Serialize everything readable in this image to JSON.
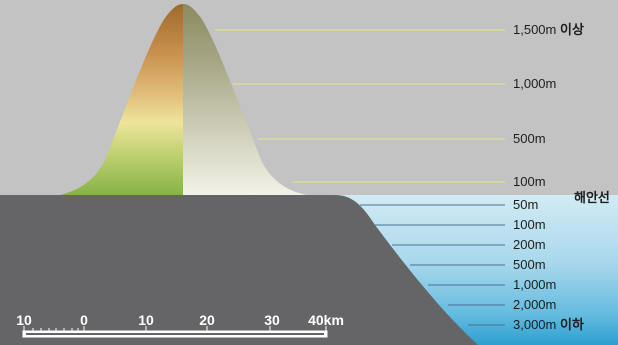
{
  "colors": {
    "background": "#c3c3c3",
    "land": "#656567",
    "sea_top": "#c9e6f2",
    "sea_bottom": "#2d9fd0",
    "guide_line_land": "#e6ea8a",
    "guide_line_sea": "#4c6f96"
  },
  "elevation_labels": [
    {
      "value": "1,500m",
      "suffix": "이상"
    },
    {
      "value": "1,000m",
      "suffix": ""
    },
    {
      "value": "500m",
      "suffix": ""
    },
    {
      "value": "100m",
      "suffix": ""
    }
  ],
  "coastline_label": "해안선",
  "depth_labels": [
    {
      "value": "50m",
      "suffix": ""
    },
    {
      "value": "100m",
      "suffix": ""
    },
    {
      "value": "200m",
      "suffix": ""
    },
    {
      "value": "500m",
      "suffix": ""
    },
    {
      "value": "1,000m",
      "suffix": ""
    },
    {
      "value": "2,000m",
      "suffix": ""
    },
    {
      "value": "3,000m",
      "suffix": "이하"
    }
  ],
  "scale_bar": {
    "labels": [
      "10",
      "0",
      "10",
      "20",
      "30",
      "40km"
    ]
  }
}
